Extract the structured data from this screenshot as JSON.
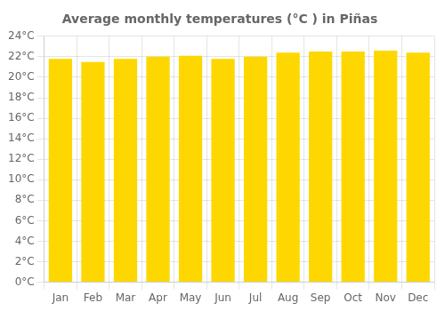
{
  "chart_data": {
    "type": "bar",
    "title": "Average monthly temperatures (°C ) in Piñas",
    "categories": [
      "Jan",
      "Feb",
      "Mar",
      "Apr",
      "May",
      "Jun",
      "Jul",
      "Aug",
      "Sep",
      "Oct",
      "Nov",
      "Dec"
    ],
    "values": [
      21.8,
      21.5,
      21.8,
      22.0,
      22.1,
      21.8,
      22.0,
      22.4,
      22.5,
      22.5,
      22.6,
      22.4
    ],
    "color": "#FFD700",
    "ylim": [
      0,
      24
    ],
    "yticks": [
      {
        "value": 0,
        "label": "0°C"
      },
      {
        "value": 2,
        "label": "2°C"
      },
      {
        "value": 4,
        "label": "4°C"
      },
      {
        "value": 6,
        "label": "6°C"
      },
      {
        "value": 8,
        "label": "8°C"
      },
      {
        "value": 10,
        "label": "10°C"
      },
      {
        "value": 12,
        "label": "12°C"
      },
      {
        "value": 14,
        "label": "14°C"
      },
      {
        "value": 16,
        "label": "16°C"
      },
      {
        "value": 18,
        "label": "18°C"
      },
      {
        "value": 20,
        "label": "20°C"
      },
      {
        "value": 22,
        "label": "22°C"
      },
      {
        "value": 24,
        "label": "24°C"
      }
    ],
    "grid": true
  }
}
